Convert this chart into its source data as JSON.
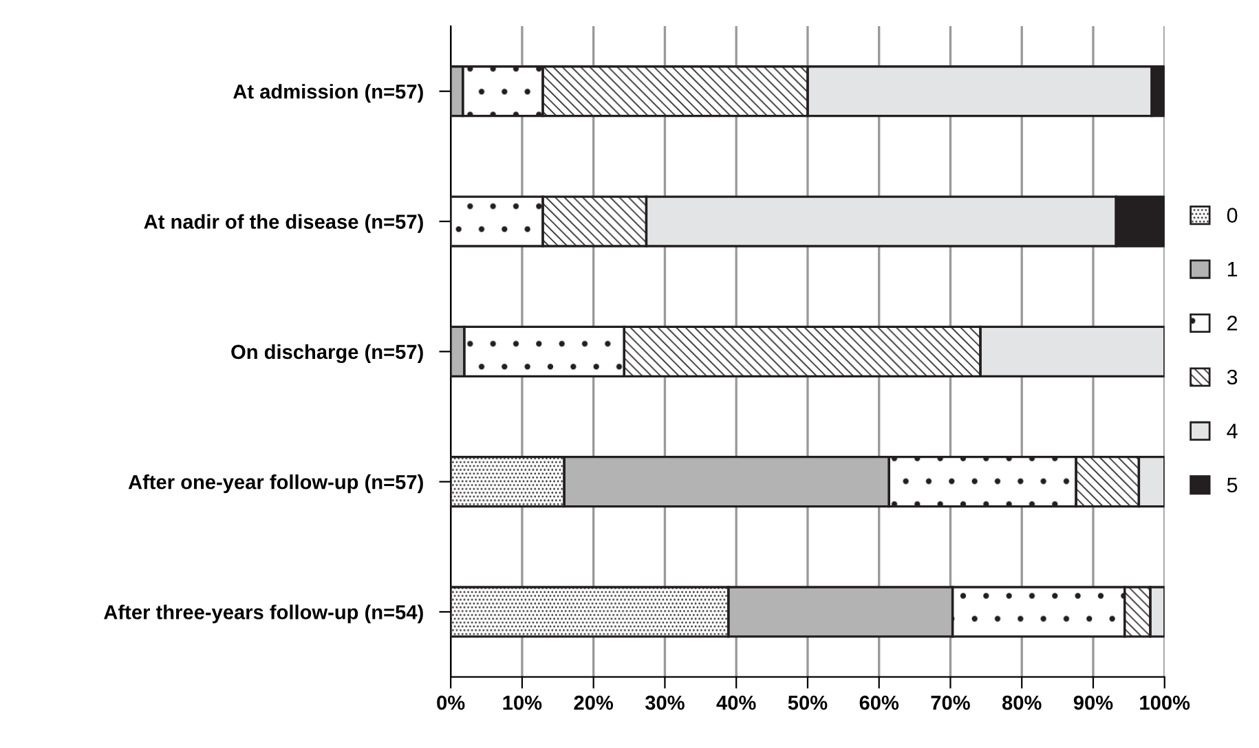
{
  "chart_data": {
    "type": "bar",
    "orientation": "horizontal",
    "stacked": true,
    "categories": [
      "At admission (n=57)",
      "At nadir of the disease (n=57)",
      "On discharge (n=57)",
      "After one-year follow-up (n=57)",
      "After three-years follow-up (n=54)"
    ],
    "series": [
      {
        "name": "0",
        "color": "#ffffff",
        "values": [
          0,
          0,
          0,
          15.9,
          38.9
        ]
      },
      {
        "name": "1",
        "color": "#b3b3b3",
        "values": [
          1.7,
          0,
          1.9,
          45.5,
          31.4
        ]
      },
      {
        "name": "2",
        "color": "#ffffff",
        "values": [
          11.2,
          12.9,
          22.4,
          26.2,
          24.1
        ]
      },
      {
        "name": "3",
        "color": "#ffffff",
        "values": [
          37.1,
          14.5,
          49.9,
          8.8,
          3.6
        ]
      },
      {
        "name": "4",
        "color": "#e3e4e5",
        "values": [
          48.2,
          65.8,
          25.8,
          3.6,
          2.0
        ]
      },
      {
        "name": "5",
        "color": "#231f20",
        "values": [
          1.8,
          6.8,
          0,
          0,
          0
        ]
      }
    ],
    "xlim": [
      0,
      100
    ],
    "xticks": [
      {
        "value": 0,
        "label": "0%"
      },
      {
        "value": 10,
        "label": "10%"
      },
      {
        "value": 20,
        "label": "20%"
      },
      {
        "value": 30,
        "label": "30%"
      },
      {
        "value": 40,
        "label": "40%"
      },
      {
        "value": 50,
        "label": "50%"
      },
      {
        "value": 60,
        "label": "60%"
      },
      {
        "value": 70,
        "label": "70%"
      },
      {
        "value": 80,
        "label": "80%"
      },
      {
        "value": 90,
        "label": "90%"
      },
      {
        "value": 100,
        "label": "100%"
      }
    ],
    "grid": "x",
    "legend": "right"
  }
}
